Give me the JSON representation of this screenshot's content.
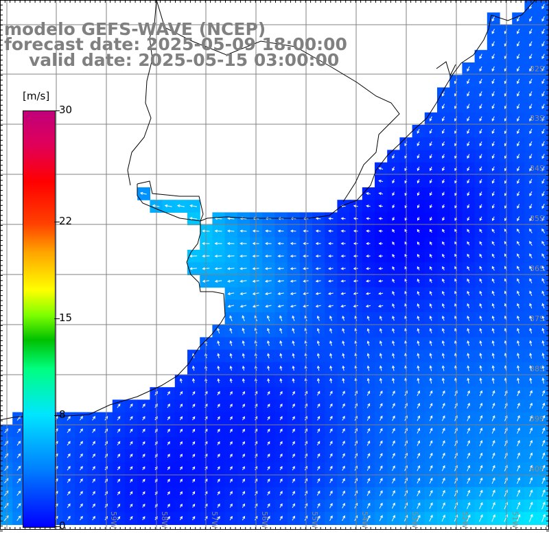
{
  "header": {
    "model": "modelo GEFS-WAVE (NCEP)",
    "forecast": "forecast date: 2025-05-09 18:00:00",
    "valid": "valid date: 2025-05-15 03:00:00"
  },
  "colorbar": {
    "unit": "[m/s]",
    "min": 0,
    "max": 30,
    "ticks": [
      "30",
      "22",
      "15",
      "8",
      "0"
    ],
    "tick_values": [
      30,
      22,
      15,
      8,
      0
    ],
    "colors": {
      "low": "#0000ff",
      "mid_low": "#00e5ff",
      "mid": "#00ff80",
      "mid_high": "#ffff00",
      "high": "#ff0000",
      "top": "#c0007a"
    }
  },
  "map": {
    "longitude_labels": [
      "59W",
      "58W",
      "57W",
      "56W",
      "55W",
      "54W",
      "53W",
      "52W",
      "51W"
    ],
    "latitude_labels": [
      "32S",
      "33S",
      "34S",
      "35S",
      "36S",
      "37S",
      "38S",
      "39S",
      "40S"
    ],
    "arrow_color": "#ffffff",
    "land_color": "#ffffff",
    "coastline_color": "#000000",
    "grid_color": "#808080"
  }
}
